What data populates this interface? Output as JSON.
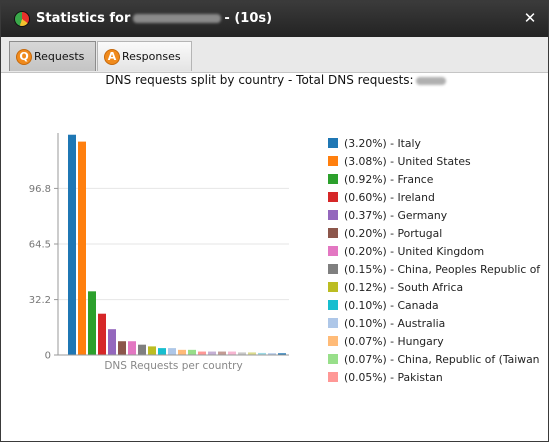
{
  "window": {
    "title_prefix": "Statistics for",
    "title_suffix": "- (10s)",
    "close_label": "✕"
  },
  "tabs": [
    {
      "label": "Requests",
      "icon": "Q",
      "active": true
    },
    {
      "label": "Responses",
      "icon": "A",
      "active": false
    }
  ],
  "chart_data": {
    "type": "bar",
    "title": "DNS requests split by country - Total DNS requests:",
    "xlabel": "DNS Requests per country",
    "ylabel": "",
    "ylim": [
      0,
      129
    ],
    "yticks": [
      "0",
      "32.2",
      "64.5",
      "96.8"
    ],
    "ytick_values": [
      0,
      32.2,
      64.5,
      96.8
    ],
    "grid": true,
    "legend_position": "right",
    "values": [
      128,
      124,
      37,
      24,
      15,
      8,
      8,
      6,
      5,
      4,
      4,
      3,
      3,
      2,
      2,
      2,
      2,
      1.5,
      1.5,
      1.2,
      1,
      1
    ],
    "colors": [
      "#1f77b4",
      "#ff7f0e",
      "#2ca02c",
      "#d62728",
      "#9467bd",
      "#8c564b",
      "#e377c2",
      "#7f7f7f",
      "#bcbd22",
      "#17becf",
      "#aec7e8",
      "#ffbb78",
      "#98df8a",
      "#ff9896",
      "#c5b0d5",
      "#c49c94",
      "#f7b6d2",
      "#c7c7c7",
      "#dbdb8d",
      "#9edae5",
      "#aec7e8",
      "#1f77b4"
    ],
    "legend": [
      {
        "label": "(3.20%) - Italy",
        "color": "#1f77b4"
      },
      {
        "label": "(3.08%) - United States",
        "color": "#ff7f0e"
      },
      {
        "label": "(0.92%) - France",
        "color": "#2ca02c"
      },
      {
        "label": "(0.60%) - Ireland",
        "color": "#d62728"
      },
      {
        "label": "(0.37%) - Germany",
        "color": "#9467bd"
      },
      {
        "label": "(0.20%) - Portugal",
        "color": "#8c564b"
      },
      {
        "label": "(0.20%) - United Kingdom",
        "color": "#e377c2"
      },
      {
        "label": "(0.15%) - China, Peoples Republic of",
        "color": "#7f7f7f"
      },
      {
        "label": "(0.12%) - South Africa",
        "color": "#bcbd22"
      },
      {
        "label": "(0.10%) - Canada",
        "color": "#17becf"
      },
      {
        "label": "(0.10%) - Australia",
        "color": "#aec7e8"
      },
      {
        "label": "(0.07%) - Hungary",
        "color": "#ffbb78"
      },
      {
        "label": "(0.07%) - China, Republic of (Taiwan",
        "color": "#98df8a"
      },
      {
        "label": "(0.05%) - Pakistan",
        "color": "#ff9896"
      }
    ]
  }
}
